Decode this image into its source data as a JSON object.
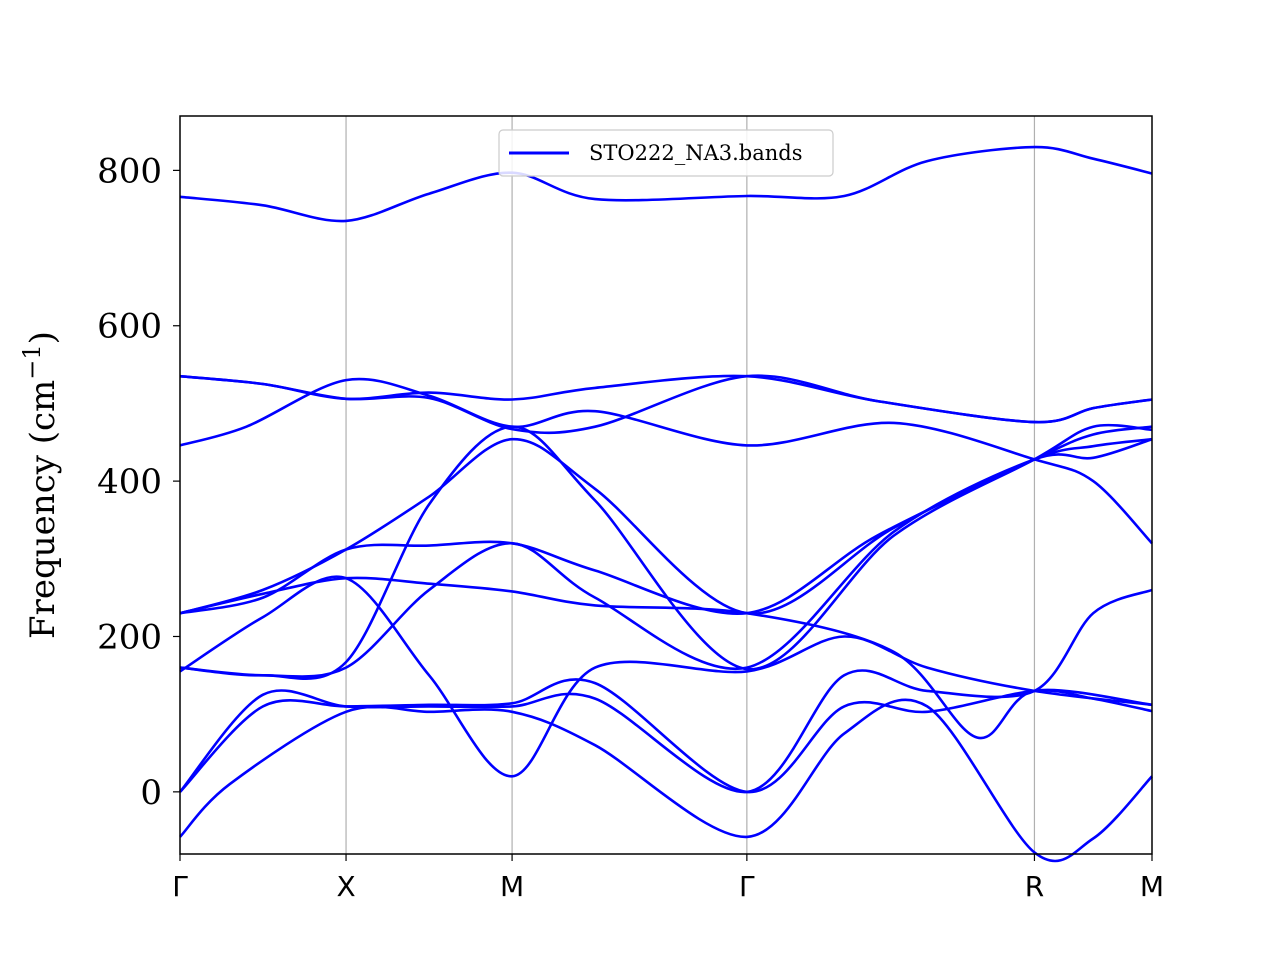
{
  "chart_data": {
    "type": "line",
    "title": "",
    "xlabel": "",
    "ylabel": "Frequency (cm",
    "ylabel_unit_sup": "−1",
    "ylabel_close": ")",
    "ylim": [
      -80,
      870
    ],
    "yticks": [
      0,
      200,
      400,
      600,
      800
    ],
    "high_symmetry_points": [
      {
        "label": "Γ",
        "x": 0.0
      },
      {
        "label": "X",
        "x": 1.0
      },
      {
        "label": "M",
        "x": 2.0
      },
      {
        "label": "Γ",
        "x": 3.414
      },
      {
        "label": "R",
        "x": 5.146
      },
      {
        "label": "M",
        "x": 5.854
      }
    ],
    "grid": "vertical at high-symmetry points",
    "legend": {
      "placement": "top-center",
      "entries": [
        "STO222_NA3.bands"
      ]
    },
    "color": "#0000ff",
    "series": [
      {
        "name": "STO222_NA3.bands",
        "points": [
          [
            0,
            766
          ],
          [
            0.5,
            755
          ],
          [
            1,
            735
          ],
          [
            1.5,
            770
          ],
          [
            2,
            797
          ],
          [
            2.5,
            763
          ],
          [
            3.414,
            767
          ],
          [
            4.0,
            767
          ],
          [
            4.5,
            812
          ],
          [
            5.146,
            830
          ],
          [
            5.5,
            815
          ],
          [
            5.854,
            796
          ]
        ]
      },
      {
        "points": [
          [
            0,
            535
          ],
          [
            0.5,
            525
          ],
          [
            1,
            506
          ],
          [
            1.5,
            507
          ],
          [
            2,
            467
          ],
          [
            2.5,
            470
          ],
          [
            3.414,
            535
          ],
          [
            4.2,
            503
          ],
          [
            5.146,
            476
          ],
          [
            5.5,
            494
          ],
          [
            5.854,
            505
          ]
        ]
      },
      {
        "points": [
          [
            0,
            535
          ],
          [
            0.5,
            525
          ],
          [
            1,
            506
          ],
          [
            1.5,
            514
          ],
          [
            2,
            505
          ],
          [
            2.5,
            520
          ],
          [
            3.414,
            535
          ],
          [
            4.2,
            503
          ],
          [
            5.146,
            476
          ],
          [
            5.5,
            494
          ],
          [
            5.854,
            505
          ]
        ]
      },
      {
        "points": [
          [
            0,
            446
          ],
          [
            0.4,
            470
          ],
          [
            1,
            530
          ],
          [
            1.5,
            510
          ],
          [
            2,
            470
          ],
          [
            2.5,
            490
          ],
          [
            3.414,
            446
          ],
          [
            4.3,
            475
          ],
          [
            5.146,
            428
          ],
          [
            5.5,
            400
          ],
          [
            5.854,
            320
          ]
        ]
      },
      {
        "points": [
          [
            0,
            230
          ],
          [
            0.5,
            260
          ],
          [
            1,
            312
          ],
          [
            1.5,
            380
          ],
          [
            2,
            454
          ],
          [
            2.5,
            390
          ],
          [
            3.414,
            230
          ],
          [
            4.3,
            340
          ],
          [
            5.146,
            428
          ],
          [
            5.5,
            445
          ],
          [
            5.854,
            454
          ]
        ]
      },
      {
        "points": [
          [
            0,
            230
          ],
          [
            0.5,
            250
          ],
          [
            1,
            312
          ],
          [
            1.5,
            317
          ],
          [
            2,
            320
          ],
          [
            2.5,
            285
          ],
          [
            3.414,
            230
          ],
          [
            4.2,
            330
          ],
          [
            5.146,
            428
          ],
          [
            5.5,
            460
          ],
          [
            5.854,
            470
          ]
        ]
      },
      {
        "points": [
          [
            0,
            230
          ],
          [
            0.5,
            255
          ],
          [
            1,
            275
          ],
          [
            1.5,
            268
          ],
          [
            2,
            258
          ],
          [
            2.5,
            240
          ],
          [
            3.414,
            230
          ],
          [
            4.3,
            180
          ],
          [
            4.8,
            70
          ],
          [
            5.146,
            130
          ],
          [
            5.854,
            112
          ]
        ]
      },
      {
        "points": [
          [
            0,
            160
          ],
          [
            0.5,
            150
          ],
          [
            1,
            167
          ],
          [
            1.5,
            370
          ],
          [
            2,
            470
          ],
          [
            2.5,
            375
          ],
          [
            3.414,
            158
          ],
          [
            4.3,
            330
          ],
          [
            5.146,
            428
          ],
          [
            5.5,
            470
          ],
          [
            5.854,
            466
          ]
        ]
      },
      {
        "points": [
          [
            0,
            160
          ],
          [
            0.5,
            150
          ],
          [
            1,
            160
          ],
          [
            1.5,
            260
          ],
          [
            2,
            320
          ],
          [
            2.5,
            250
          ],
          [
            3.414,
            160
          ],
          [
            4.3,
            335
          ],
          [
            5.146,
            428
          ],
          [
            5.5,
            430
          ],
          [
            5.854,
            454
          ]
        ]
      },
      {
        "points": [
          [
            0,
            155
          ],
          [
            0.5,
            225
          ],
          [
            1,
            275
          ],
          [
            1.5,
            150
          ],
          [
            2,
            20
          ],
          [
            2.5,
            160
          ],
          [
            3.414,
            155
          ],
          [
            4.0,
            200
          ],
          [
            4.5,
            160
          ],
          [
            5.146,
            130
          ],
          [
            5.854,
            112
          ]
        ]
      },
      {
        "points": [
          [
            0,
            0
          ],
          [
            0.5,
            110
          ],
          [
            1,
            110
          ],
          [
            1.5,
            112
          ],
          [
            2,
            114
          ],
          [
            2.5,
            140
          ],
          [
            3.414,
            0
          ],
          [
            4.0,
            110
          ],
          [
            4.5,
            103
          ],
          [
            5.146,
            130
          ],
          [
            5.5,
            120
          ],
          [
            5.854,
            104
          ]
        ]
      },
      {
        "points": [
          [
            0,
            0
          ],
          [
            0.5,
            125
          ],
          [
            1,
            110
          ],
          [
            1.5,
            110
          ],
          [
            2,
            110
          ],
          [
            2.5,
            120
          ],
          [
            3.414,
            0
          ],
          [
            4.0,
            150
          ],
          [
            4.5,
            130
          ],
          [
            5.146,
            130
          ],
          [
            5.5,
            230
          ],
          [
            5.854,
            260
          ]
        ]
      },
      {
        "points": [
          [
            0,
            -58
          ],
          [
            0.3,
            10
          ],
          [
            1,
            103
          ],
          [
            1.5,
            103
          ],
          [
            2,
            103
          ],
          [
            2.5,
            60
          ],
          [
            3.414,
            -58
          ],
          [
            4.0,
            75
          ],
          [
            4.5,
            110
          ],
          [
            5.146,
            -78
          ],
          [
            5.5,
            -60
          ],
          [
            5.854,
            20
          ]
        ]
      }
    ]
  }
}
